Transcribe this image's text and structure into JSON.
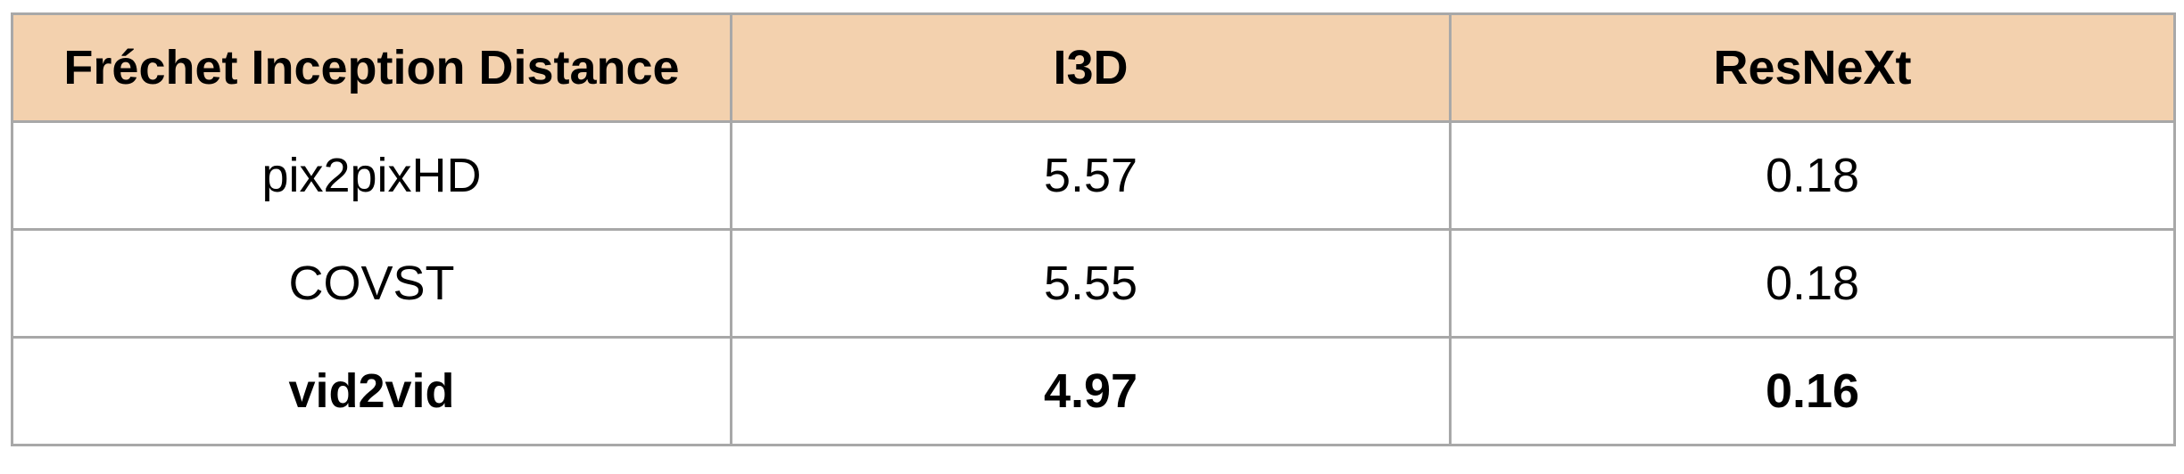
{
  "table": {
    "headers": [
      "Fréchet Inception Distance",
      "I3D",
      "ResNeXt"
    ],
    "header_background": "#f3d1ae",
    "border_color": "#a8a8a8",
    "rows": [
      {
        "method": "pix2pixHD",
        "i3d": "5.57",
        "resnext": "0.18",
        "bold": false
      },
      {
        "method": "COVST",
        "i3d": "5.55",
        "resnext": "0.18",
        "bold": false
      },
      {
        "method": "vid2vid",
        "i3d": "4.97",
        "resnext": "0.16",
        "bold": true
      }
    ]
  }
}
